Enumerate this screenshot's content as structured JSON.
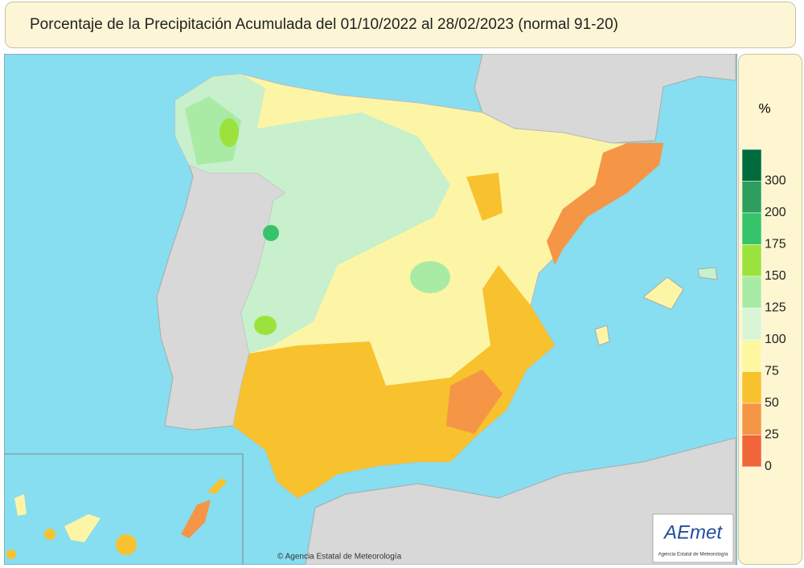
{
  "header": {
    "title": "Porcentaje de la Precipitación Acumulada del 01/10/2022 al 28/02/2023 (normal 91-20)"
  },
  "legend": {
    "unit": "%",
    "ticks": [
      300,
      200,
      175,
      150,
      125,
      100,
      75,
      50,
      25,
      0
    ],
    "colors": [
      "#006b3c",
      "#2e9e5e",
      "#36c46a",
      "#9be33c",
      "#a9eba5",
      "#d8f5d6",
      "#fdf7a0",
      "#f7c22e",
      "#f59646",
      "#f0663a"
    ]
  },
  "map": {
    "credit": "© Agencia Estatal de Meteorología"
  },
  "logo": {
    "text": "AEmet",
    "subtitle": "Agencia Estatal de Meteorología"
  }
}
